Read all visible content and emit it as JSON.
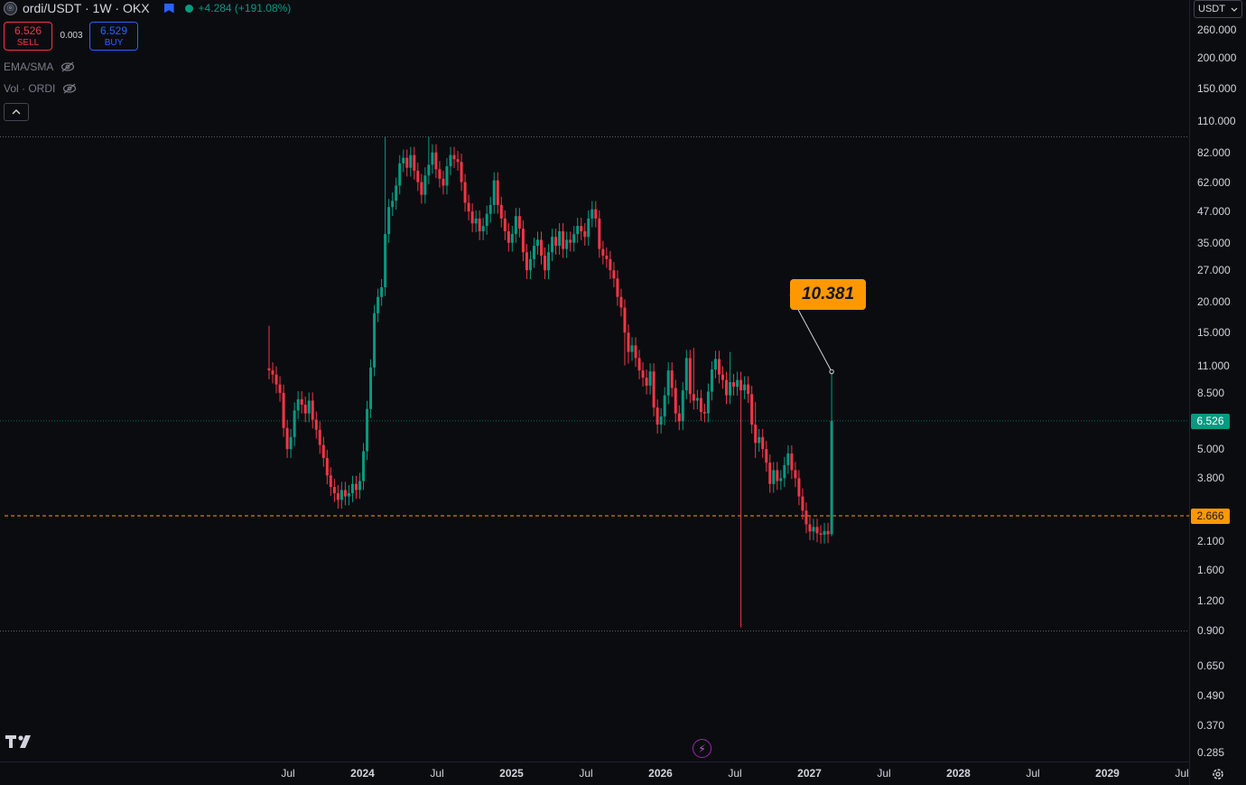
{
  "header": {
    "symbol_icon": "ordi-coin-icon",
    "symbol_icon_text": "ⓞ",
    "title": "ordi/USDT · 1W · OKX",
    "change": "+4.284 (+191.08%)"
  },
  "trade": {
    "sell_price": "6.526",
    "sell_label": "SELL",
    "spread": "0.003",
    "buy_price": "6.529",
    "buy_label": "BUY"
  },
  "indicators": [
    {
      "label": "EMA/SMA"
    },
    {
      "label": "Vol · ORDI"
    }
  ],
  "price_axis": {
    "currency": "USDT",
    "ticks": [
      "260.000",
      "200.000",
      "150.000",
      "110.000",
      "82.000",
      "62.000",
      "47.000",
      "35.000",
      "27.000",
      "20.000",
      "15.000",
      "11.000",
      "8.500",
      "6.526",
      "5.000",
      "3.800",
      "2.100",
      "1.600",
      "1.200",
      "0.900",
      "0.650",
      "0.490",
      "0.370",
      "0.285"
    ],
    "tick_values": [
      260,
      200,
      150,
      110,
      82,
      62,
      47,
      35,
      27,
      20,
      15,
      11,
      8.5,
      6.526,
      5,
      3.8,
      2.1,
      1.6,
      1.2,
      0.9,
      0.65,
      0.49,
      0.37,
      0.285
    ],
    "current_price": "6.526",
    "base_line": "2.666",
    "high_line": 95,
    "low_line": 0.9
  },
  "time_axis": [
    {
      "label": "Jul",
      "bold": false
    },
    {
      "label": "2024",
      "bold": true
    },
    {
      "label": "Jul",
      "bold": false
    },
    {
      "label": "2025",
      "bold": true
    },
    {
      "label": "Jul",
      "bold": false
    },
    {
      "label": "2026",
      "bold": true
    },
    {
      "label": "Jul",
      "bold": false
    },
    {
      "label": "2027",
      "bold": true
    },
    {
      "label": "Jul",
      "bold": false
    },
    {
      "label": "2028",
      "bold": true
    },
    {
      "label": "Jul",
      "bold": false
    },
    {
      "label": "2029",
      "bold": true
    },
    {
      "label": "Jul",
      "bold": false
    }
  ],
  "annotation": {
    "label": "10.381",
    "value": 10.381
  },
  "colors": {
    "up": "#089981",
    "down": "#f23645",
    "accent": "#ff9800",
    "background": "#0b0c10"
  },
  "chart_data": {
    "type": "candlestick",
    "scale": "log",
    "interval": "1W",
    "grid": false,
    "ylim": [
      0.27,
      290
    ],
    "series": [
      {
        "name": "ordi/USDT",
        "close": [
          10.5,
          10.1,
          9.2,
          8.5,
          6.1,
          5.0,
          5.6,
          7.2,
          8.0,
          7.6,
          7.0,
          7.9,
          6.6,
          6.0,
          5.2,
          4.6,
          3.9,
          3.5,
          3.3,
          3.1,
          3.4,
          3.2,
          3.3,
          3.6,
          3.4,
          3.7,
          4.9,
          7.3,
          10.8,
          18,
          21,
          23,
          38,
          49,
          52,
          60,
          74,
          78,
          71,
          80,
          69,
          62,
          55,
          66,
          73,
          82,
          70,
          64,
          60,
          72,
          80,
          77,
          75,
          62,
          51,
          47,
          42,
          44,
          39,
          41,
          46,
          50,
          63,
          50,
          44,
          39,
          35,
          38,
          45,
          40,
          32,
          27,
          30,
          34,
          36,
          31,
          27,
          32,
          37,
          34,
          39,
          33,
          36,
          35,
          38,
          41,
          39,
          37,
          44,
          48,
          44,
          33,
          31,
          30,
          27,
          25,
          21,
          19,
          15,
          12.5,
          13.3,
          11.8,
          10.5,
          9.8,
          9.1,
          10.4,
          7.4,
          6.3,
          6.8,
          8.3,
          10.5,
          8.9,
          7.0,
          6.5,
          8.7,
          11.8,
          8.4,
          7.9,
          8.1,
          7.1,
          7.0,
          8.6,
          10.6,
          11.7,
          10.1,
          9.6,
          8.3,
          9.4,
          9.0,
          9.6,
          8.7,
          9.2,
          8.4,
          6.3,
          5.3,
          5.6,
          5.0,
          4.4,
          3.6,
          4.1,
          3.7,
          3.8,
          4.3,
          4.8,
          4.1,
          3.8,
          3.2,
          2.8,
          2.46,
          2.3,
          2.4,
          2.26,
          2.23,
          2.31,
          2.24,
          6.53
        ]
      }
    ]
  }
}
